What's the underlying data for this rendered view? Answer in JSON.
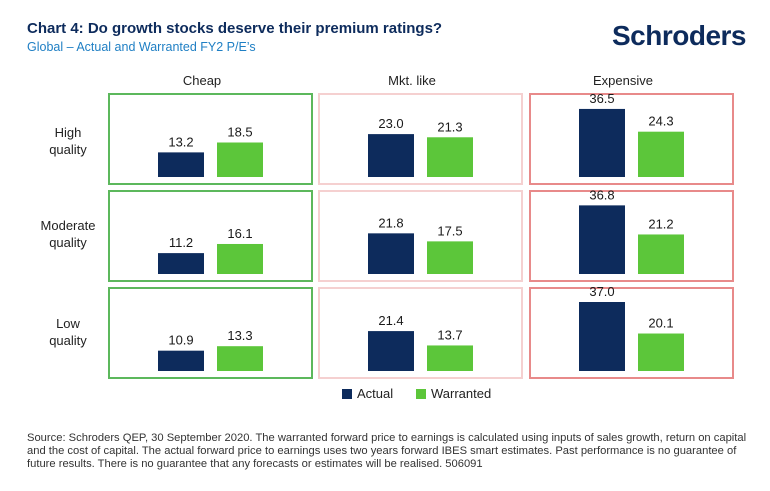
{
  "title": "Chart 4: Do growth stocks deserve their premium ratings?",
  "subtitle": "Global – Actual and Warranted FY2 P/E’s",
  "logo_text": "Schroders",
  "colors": {
    "actual": "#0d2b5c",
    "warranted": "#5cc63a",
    "cheap_border": "#5cb85c",
    "mkt_border": "#f5d0d0",
    "expensive_border": "#e88a8a",
    "title": "#0d2b5c",
    "subtitle": "#1f7fc4"
  },
  "chart_data": {
    "type": "bar",
    "layout": "small-multiples 3x3 grouped bars",
    "columns": [
      "Cheap",
      "Mkt. like",
      "Expensive"
    ],
    "rows": [
      "High\nquality",
      "Moderate\nquality",
      "Low\nquality"
    ],
    "series_names": [
      "Actual",
      "Warranted"
    ],
    "cells": [
      [
        {
          "actual": 13.2,
          "warranted": 18.5
        },
        {
          "actual": 23.0,
          "warranted": 21.3
        },
        {
          "actual": 36.5,
          "warranted": 24.3
        }
      ],
      [
        {
          "actual": 11.2,
          "warranted": 16.1
        },
        {
          "actual": 21.8,
          "warranted": 17.5
        },
        {
          "actual": 36.8,
          "warranted": 21.2
        }
      ],
      [
        {
          "actual": 10.9,
          "warranted": 13.3
        },
        {
          "actual": 21.4,
          "warranted": 13.7
        },
        {
          "actual": 37.0,
          "warranted": 20.1
        }
      ]
    ],
    "value_format": "1 decimal",
    "ylim": [
      0,
      37.0
    ],
    "legend_position": "bottom-center",
    "grid": false
  },
  "legend": [
    {
      "label": "Actual",
      "color_key": "actual"
    },
    {
      "label": "Warranted",
      "color_key": "warranted"
    }
  ],
  "footnote": "Source: Schroders QEP, 30 September 2020. The warranted forward price to earnings is calculated using inputs of sales growth, return on capital and the cost of capital. The actual forward price to earnings uses two years forward IBES smart estimates. Past performance is no guarantee of future results. There is no guarantee that any forecasts or estimates will be realised. 506091"
}
